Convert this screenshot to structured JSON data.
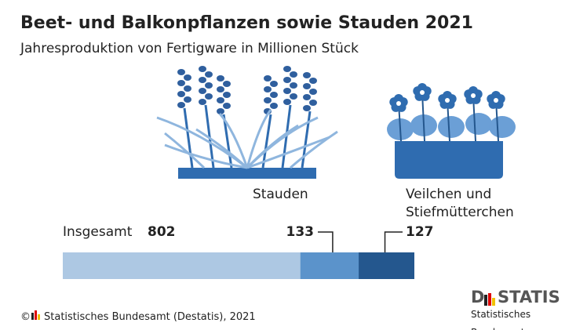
{
  "chart_data": {
    "type": "stacked-bar",
    "title": "Beet- und Balkonpflanzen sowie Stauden 2021",
    "subtitle": "Jahresproduktion von Fertigware in Millionen Stück",
    "total_name": "Insgesamt",
    "total": 802,
    "total_color": "#adc8e3",
    "series": [
      {
        "name": "Stauden",
        "color": "#5b93cb",
        "value": 133
      },
      {
        "name": "Veilchen und Stiefmütterchen",
        "color": "#24578e",
        "value": 127
      }
    ]
  },
  "footer": {
    "copyright": "©",
    "source": "Statistisches Bundesamt (Destatis), 2021",
    "logo_left": "D",
    "logo_right": "STATIS",
    "logo_sub": "Statistisches Bundesamt"
  }
}
